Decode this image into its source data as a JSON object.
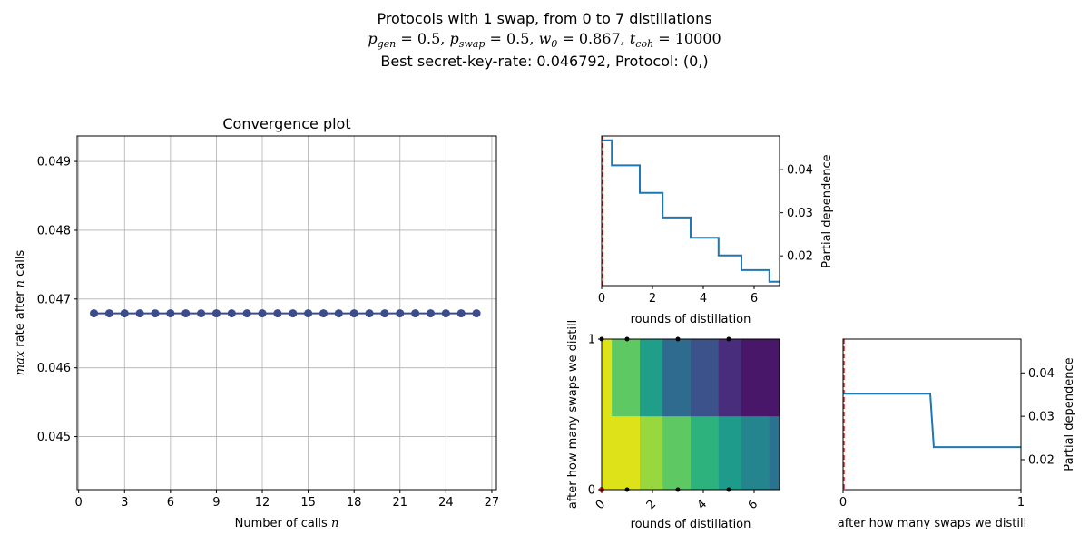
{
  "figure": {
    "title_line1": "Protocols with 1 swap, from 0 to 7 distillations",
    "title_line2": {
      "p_gen_label": "p",
      "p_gen_sub": "gen",
      "p_gen_value": " = 0.5, ",
      "p_swap_label": "p",
      "p_swap_sub": "swap",
      "p_swap_value": " = 0.5, ",
      "w0_label": "w",
      "w0_sub": "0",
      "w0_value": " = 0.867, ",
      "tcoh_label": "t",
      "tcoh_sub": "coh",
      "tcoh_value": " = 10000"
    },
    "title_line3": "Best secret-key-rate: 0.046792, Protocol: (0,)"
  },
  "chart_data": [
    {
      "id": "convergence",
      "type": "line",
      "title": "Convergence plot",
      "xlabel_prefix": "Number of calls ",
      "xlabel_var": "n",
      "ylabel_var1": "max",
      "ylabel_mid": " rate after ",
      "ylabel_var2": "n",
      "ylabel_suffix": " calls",
      "xlim": [
        -0.1,
        27.3
      ],
      "ylim": [
        0.04423,
        0.04937
      ],
      "xticks": [
        0,
        3,
        6,
        9,
        12,
        15,
        18,
        21,
        24,
        27
      ],
      "yticks": [
        0.045,
        0.046,
        0.047,
        0.048,
        0.049
      ],
      "ytick_labels": [
        "0.045",
        "0.046",
        "0.047",
        "0.048",
        "0.049"
      ],
      "grid": true,
      "color": "#3b4c8c",
      "x": [
        1,
        2,
        3,
        4,
        5,
        6,
        7,
        8,
        9,
        10,
        11,
        12,
        13,
        14,
        15,
        16,
        17,
        18,
        19,
        20,
        21,
        22,
        23,
        24,
        25,
        26
      ],
      "y": [
        0.046792,
        0.046792,
        0.046792,
        0.046792,
        0.046792,
        0.046792,
        0.046792,
        0.046792,
        0.046792,
        0.046792,
        0.046792,
        0.046792,
        0.046792,
        0.046792,
        0.046792,
        0.046792,
        0.046792,
        0.046792,
        0.046792,
        0.046792,
        0.046792,
        0.046792,
        0.046792,
        0.046792,
        0.046792,
        0.046792
      ]
    },
    {
      "id": "pd-distillation",
      "type": "line",
      "xlabel": "rounds of distillation",
      "ylabel": "Partial dependence",
      "xlim": [
        0,
        7
      ],
      "ylim": [
        0.0131,
        0.0478
      ],
      "xticks": [
        0,
        2,
        4,
        6
      ],
      "yticks": [
        0.02,
        0.03,
        0.04
      ],
      "ytick_labels": [
        "0.02",
        "0.03",
        "0.04"
      ],
      "color": "#1f77b4",
      "marker_line_x": 0,
      "marker_line_color": "#d62728",
      "x": [
        0,
        0.4,
        0.4,
        1.5,
        1.5,
        2.4,
        2.4,
        3.5,
        3.5,
        4.6,
        4.6,
        5.5,
        5.5,
        6.6,
        6.6,
        7
      ],
      "y": [
        0.0468,
        0.0468,
        0.041,
        0.041,
        0.0346,
        0.0346,
        0.0289,
        0.0289,
        0.0242,
        0.0242,
        0.0201,
        0.0201,
        0.0167,
        0.0167,
        0.014,
        0.014
      ]
    },
    {
      "id": "pd-swap",
      "type": "line",
      "xlabel": "after how many swaps we distill",
      "ylabel": "Partial dependence",
      "xlim": [
        0,
        1
      ],
      "ylim": [
        0.0131,
        0.0478
      ],
      "xticks": [
        0,
        1
      ],
      "yticks": [
        0.02,
        0.03,
        0.04
      ],
      "ytick_labels": [
        "0.02",
        "0.03",
        "0.04"
      ],
      "color": "#1f77b4",
      "marker_line_x": 0,
      "marker_line_color": "#d62728",
      "x": [
        0,
        0.49,
        0.51,
        1
      ],
      "y": [
        0.0352,
        0.0352,
        0.0229,
        0.0229
      ]
    },
    {
      "id": "pd-heatmap",
      "type": "heatmap",
      "xlabel": "rounds of distillation",
      "ylabel": "after how many swaps we distill",
      "xlim": [
        0,
        7
      ],
      "ylim": [
        0,
        1
      ],
      "xticks": [
        0,
        2,
        4,
        6
      ],
      "yticks": [
        0,
        1
      ],
      "x_edges": [
        0,
        0.4,
        1.5,
        2.4,
        3.5,
        4.6,
        5.5,
        6.6,
        7
      ],
      "y_edges": [
        0,
        0.49,
        1
      ],
      "rows": [
        {
          "y_from": 0,
          "y_to": 0.49,
          "colors": [
            "#dde318",
            "#dde318",
            "#98d83e",
            "#5ec962",
            "#2db27d",
            "#1e9b8a",
            "#25858e",
            "#2c728e"
          ]
        },
        {
          "y_from": 0.49,
          "y_to": 1,
          "colors": [
            "#dde318",
            "#5ec962",
            "#1f9e89",
            "#2f6b8e",
            "#3b528b",
            "#472d7b",
            "#481769",
            "#481769"
          ]
        }
      ],
      "samples": [
        {
          "x": 0,
          "y": 1
        },
        {
          "x": 1,
          "y": 1
        },
        {
          "x": 3,
          "y": 1
        },
        {
          "x": 5,
          "y": 1
        },
        {
          "x": 1,
          "y": 0
        },
        {
          "x": 3,
          "y": 0
        },
        {
          "x": 5,
          "y": 0
        }
      ],
      "best_point": {
        "x": 0,
        "y": 0,
        "color": "#d62728"
      }
    }
  ]
}
